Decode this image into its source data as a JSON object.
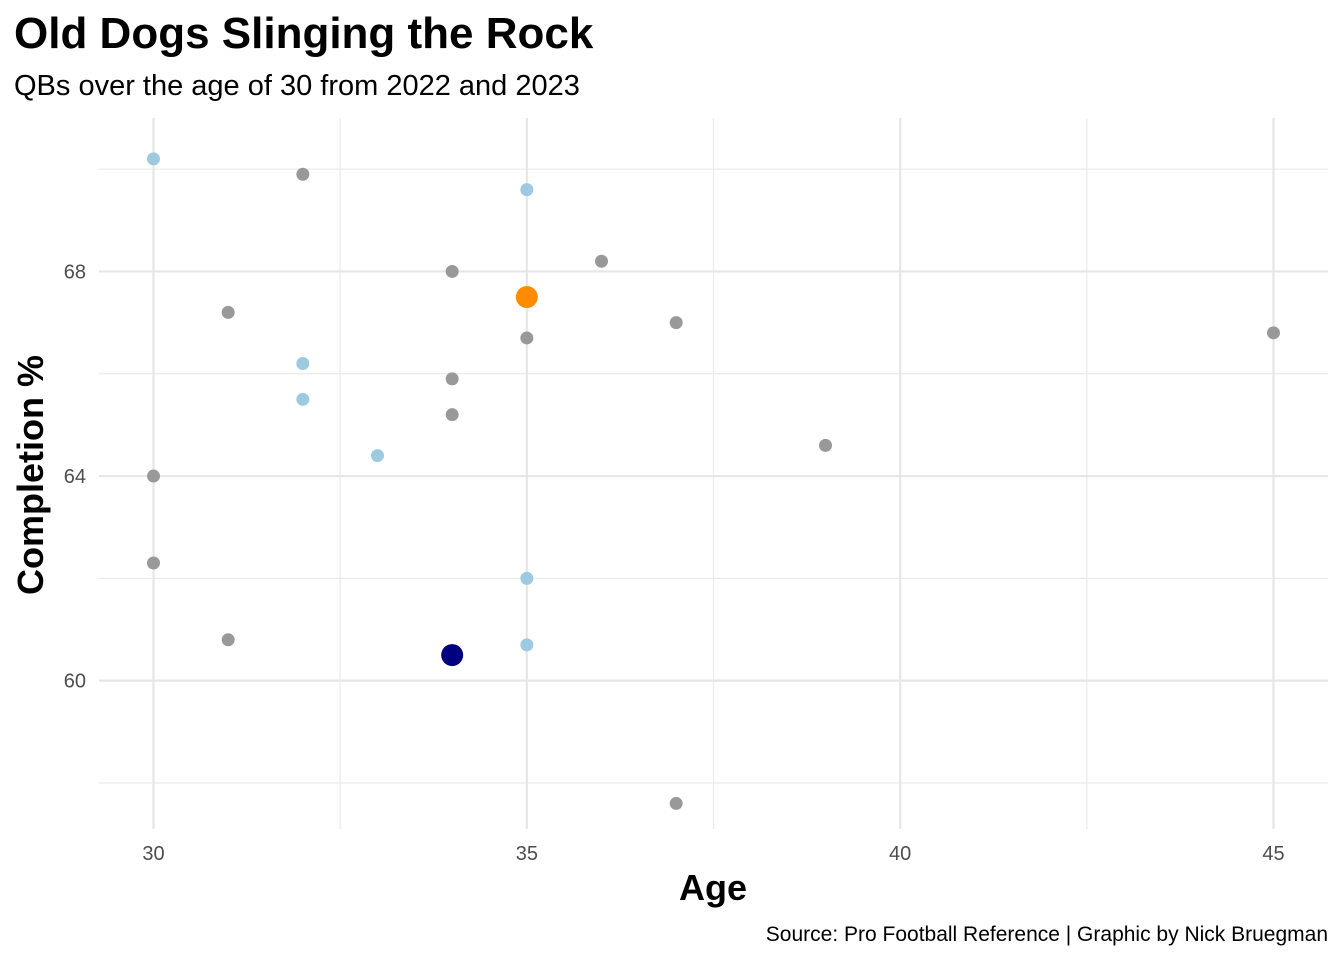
{
  "chart_data": {
    "type": "scatter",
    "title": "Old Dogs Slinging the Rock",
    "subtitle": "QBs over the age of 30 from 2022 and 2023",
    "caption": "Source: Pro Football Reference | Graphic by Nick Bruegman",
    "xlabel": "Age",
    "ylabel": "Completion %",
    "xlim": [
      29.27,
      45.73
    ],
    "ylim": [
      57.1,
      71.0
    ],
    "x_ticks": [
      30,
      35,
      40,
      45
    ],
    "y_ticks": [
      60,
      64,
      68
    ],
    "grid": true,
    "legend": "none",
    "colors": {
      "gray": "#999999",
      "lightblue": "#9ecae1",
      "orange": "#ff8c00",
      "navy": "#000080"
    },
    "points": [
      {
        "x": 30,
        "y": 70.2,
        "color": "lightblue"
      },
      {
        "x": 32,
        "y": 69.9,
        "color": "gray"
      },
      {
        "x": 35,
        "y": 69.6,
        "color": "lightblue"
      },
      {
        "x": 36,
        "y": 68.2,
        "color": "gray"
      },
      {
        "x": 34,
        "y": 68.0,
        "color": "gray"
      },
      {
        "x": 35,
        "y": 67.5,
        "color": "orange",
        "highlight": true
      },
      {
        "x": 31,
        "y": 67.2,
        "color": "gray"
      },
      {
        "x": 37,
        "y": 67.0,
        "color": "gray"
      },
      {
        "x": 45,
        "y": 66.8,
        "color": "gray"
      },
      {
        "x": 35,
        "y": 66.7,
        "color": "gray"
      },
      {
        "x": 32,
        "y": 66.2,
        "color": "lightblue"
      },
      {
        "x": 34,
        "y": 65.9,
        "color": "gray"
      },
      {
        "x": 32,
        "y": 65.5,
        "color": "lightblue"
      },
      {
        "x": 34,
        "y": 65.2,
        "color": "gray"
      },
      {
        "x": 39,
        "y": 64.6,
        "color": "gray"
      },
      {
        "x": 33,
        "y": 64.4,
        "color": "lightblue"
      },
      {
        "x": 30,
        "y": 64.0,
        "color": "gray"
      },
      {
        "x": 30,
        "y": 62.3,
        "color": "gray"
      },
      {
        "x": 35,
        "y": 62.0,
        "color": "lightblue"
      },
      {
        "x": 31,
        "y": 60.8,
        "color": "gray"
      },
      {
        "x": 35,
        "y": 60.7,
        "color": "lightblue"
      },
      {
        "x": 34,
        "y": 60.5,
        "color": "navy",
        "highlight": true
      },
      {
        "x": 37,
        "y": 57.6,
        "color": "gray"
      }
    ]
  }
}
